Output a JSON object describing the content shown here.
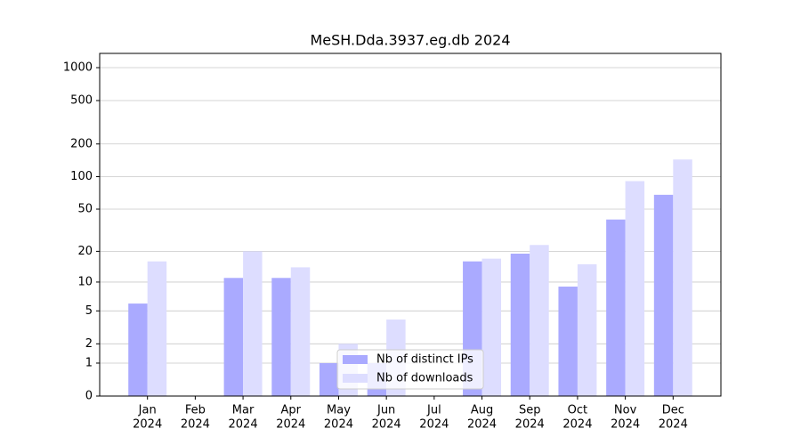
{
  "chart_data": {
    "type": "bar",
    "title": "MeSH.Dda.3937.eg.db 2024",
    "categories": [
      [
        "Jan",
        "2024"
      ],
      [
        "Feb",
        "2024"
      ],
      [
        "Mar",
        "2024"
      ],
      [
        "Apr",
        "2024"
      ],
      [
        "May",
        "2024"
      ],
      [
        "Jun",
        "2024"
      ],
      [
        "Jul",
        "2024"
      ],
      [
        "Aug",
        "2024"
      ],
      [
        "Sep",
        "2024"
      ],
      [
        "Oct",
        "2024"
      ],
      [
        "Nov",
        "2024"
      ],
      [
        "Dec",
        "2024"
      ]
    ],
    "series": [
      {
        "name": "Nb of distinct IPs",
        "color": "#aaaaff",
        "values": [
          6,
          0,
          11,
          11,
          1,
          1,
          0,
          16,
          19,
          9,
          40,
          68
        ]
      },
      {
        "name": "Nb of downloads",
        "color": "#ddddff",
        "values": [
          16,
          0,
          20,
          14,
          2,
          4,
          0,
          17,
          23,
          15,
          91,
          144
        ]
      }
    ],
    "yscale": "log1p",
    "ylim": [
      0,
      1350
    ],
    "yticks": [
      0,
      1,
      2,
      5,
      10,
      20,
      50,
      100,
      200,
      500,
      1000
    ],
    "grid": true,
    "legend": "lower center"
  }
}
